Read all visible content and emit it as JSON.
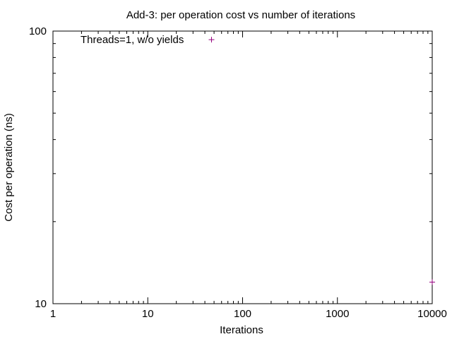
{
  "chart_data": {
    "type": "scatter",
    "title": "Add-3: per operation cost vs number of iterations",
    "xlabel": "Iterations",
    "ylabel": "Cost per operation (ns)",
    "xscale": "log",
    "yscale": "log",
    "xlim": [
      1,
      10000
    ],
    "ylim": [
      10,
      100
    ],
    "xticks": [
      {
        "value": 1,
        "label": "1"
      },
      {
        "value": 10,
        "label": "10"
      },
      {
        "value": 100,
        "label": "100"
      },
      {
        "value": 1000,
        "label": "1000"
      },
      {
        "value": 10000,
        "label": "10000"
      }
    ],
    "yticks": [
      {
        "value": 10,
        "label": "10"
      },
      {
        "value": 100,
        "label": "100"
      }
    ],
    "grid": false,
    "legend_position": "top-left",
    "series": [
      {
        "name": "Threads=1, w/o yields",
        "color": "#94007e",
        "marker": "plus",
        "points": [
          {
            "x": 47,
            "y": 93
          },
          {
            "x": 10000,
            "y": 12
          }
        ]
      }
    ]
  }
}
